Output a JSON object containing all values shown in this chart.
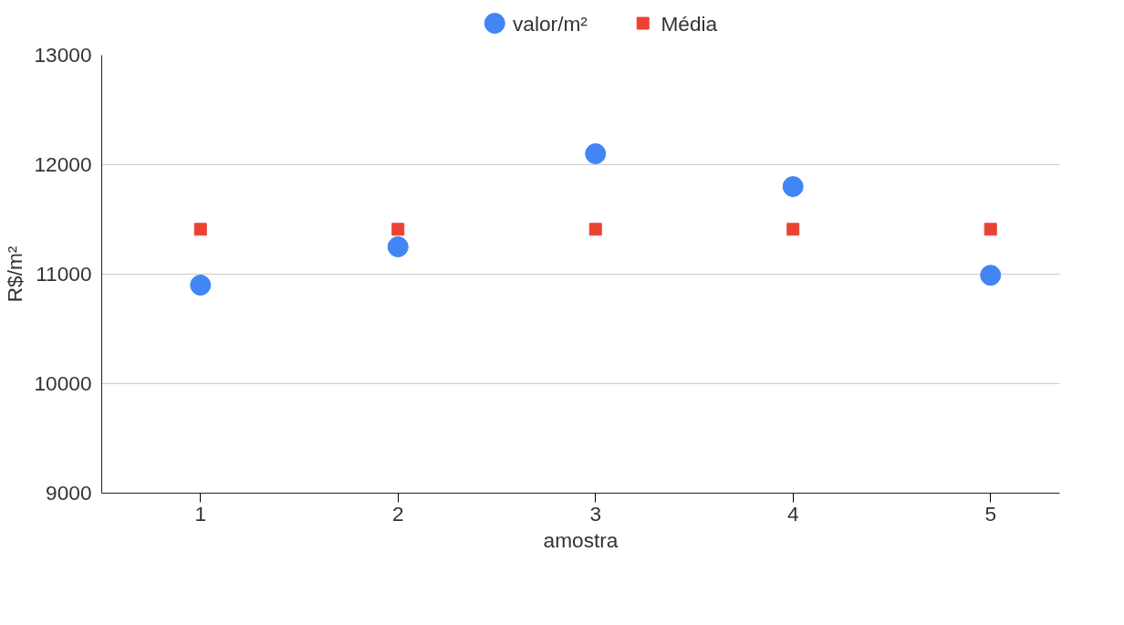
{
  "chart_data": {
    "type": "scatter",
    "xlabel": "amostra",
    "ylabel": "R$/m²",
    "x": [
      1,
      2,
      3,
      4,
      5
    ],
    "series": [
      {
        "name": "valor/m²",
        "color": "#4285f4",
        "marker": "circle",
        "values": [
          10900,
          11250,
          12100,
          11800,
          10990
        ]
      },
      {
        "name": "Média",
        "color": "#ea4335",
        "marker": "square",
        "values": [
          11410,
          11410,
          11410,
          11410,
          11410
        ]
      }
    ],
    "xlim": [
      0.5,
      5.35
    ],
    "xticks": [
      1,
      2,
      3,
      4,
      5
    ],
    "ylim": [
      9000,
      13000
    ],
    "yticks": [
      9000,
      10000,
      11000,
      12000,
      13000
    ],
    "grid": "y",
    "legend": "top"
  }
}
